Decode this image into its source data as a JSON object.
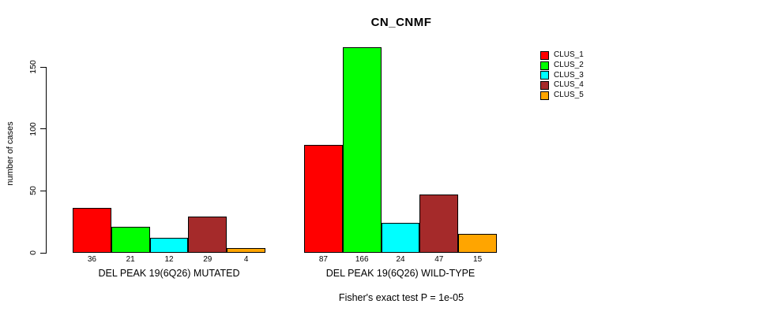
{
  "title": "CN_CNMF",
  "y_axis": {
    "label": "number of cases",
    "ticks": [
      "0",
      "50",
      "100",
      "150"
    ]
  },
  "footer": "Fisher's exact test P = 1e-05",
  "legend": {
    "items": [
      {
        "label": "CLUS_1",
        "color": "#FF0000"
      },
      {
        "label": "CLUS_2",
        "color": "#00FF00"
      },
      {
        "label": "CLUS_3",
        "color": "#00FFFF"
      },
      {
        "label": "CLUS_4",
        "color": "#A52A2A"
      },
      {
        "label": "CLUS_5",
        "color": "#FFA500"
      }
    ]
  },
  "chart_data": {
    "type": "bar",
    "title": "CN_CNMF",
    "xlabel": "",
    "ylabel": "number of cases",
    "ylim": [
      0,
      170
    ],
    "yticks": [
      0,
      50,
      100,
      150
    ],
    "grid": false,
    "legend_position": "right",
    "series_names": [
      "CLUS_1",
      "CLUS_2",
      "CLUS_3",
      "CLUS_4",
      "CLUS_5"
    ],
    "colors": [
      "#FF0000",
      "#00FF00",
      "#00FFFF",
      "#A52A2A",
      "#FFA500"
    ],
    "groups": [
      {
        "label": "DEL PEAK 19(6Q26) MUTATED",
        "values": [
          36,
          21,
          12,
          29,
          4
        ]
      },
      {
        "label": "DEL PEAK 19(6Q26) WILD-TYPE",
        "values": [
          87,
          166,
          24,
          47,
          15
        ]
      }
    ],
    "annotation": "Fisher's exact test P = 1e-05"
  }
}
